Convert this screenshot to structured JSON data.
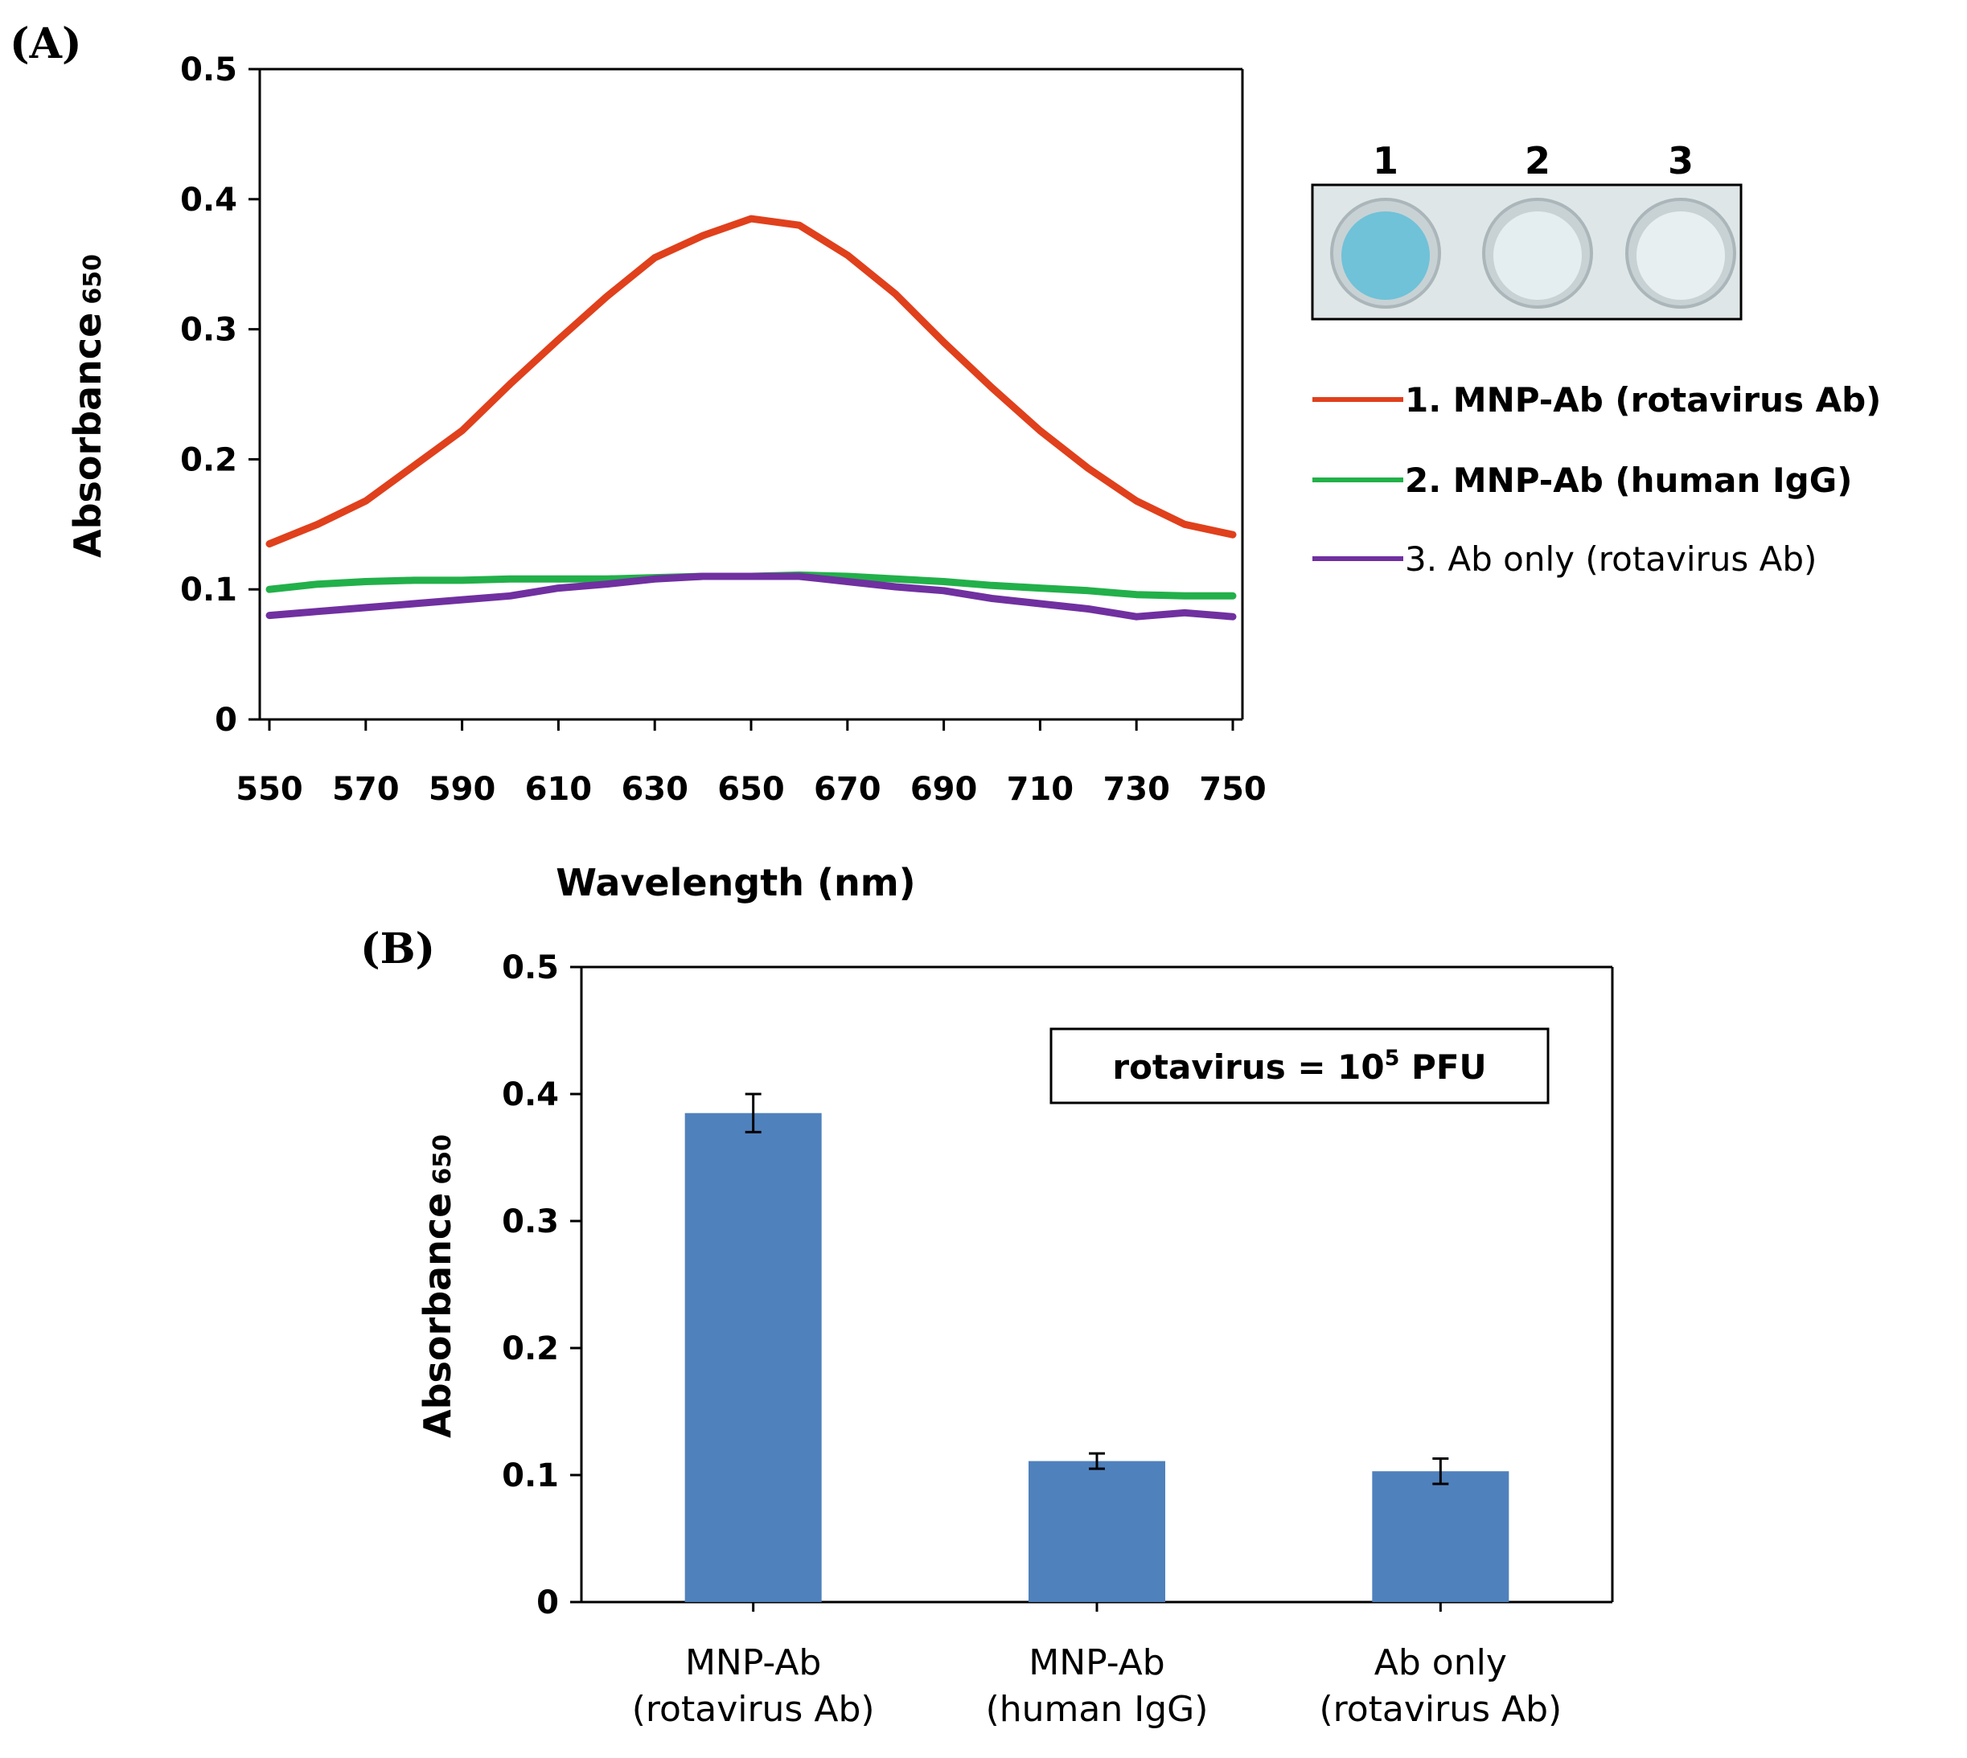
{
  "chart_data": [
    {
      "type": "line",
      "panel_label": "(A)",
      "xlabel": "Wavelength (nm)",
      "ylabel": "Absorbance",
      "ylabel_sub": "650",
      "xlim": [
        550,
        750
      ],
      "ylim": [
        0,
        0.5
      ],
      "xticks": [
        "550",
        "570",
        "590",
        "610",
        "630",
        "650",
        "670",
        "690",
        "710",
        "730",
        "750"
      ],
      "yticks": [
        "0",
        "0.1",
        "0.2",
        "0.3",
        "0.4",
        "0.5"
      ],
      "grid": false,
      "legend_position": "right",
      "x": [
        550,
        560,
        570,
        580,
        590,
        600,
        610,
        620,
        630,
        640,
        650,
        660,
        670,
        680,
        690,
        700,
        710,
        720,
        730,
        740,
        750
      ],
      "series": [
        {
          "name": "1. MNP-Ab (rotavirus Ab)",
          "color": "#e0401c",
          "legend_bold": true,
          "values": [
            0.135,
            0.15,
            0.168,
            0.195,
            0.222,
            0.258,
            0.292,
            0.325,
            0.355,
            0.372,
            0.385,
            0.38,
            0.357,
            0.327,
            0.29,
            0.255,
            0.222,
            0.193,
            0.168,
            0.15,
            0.142
          ]
        },
        {
          "name": "2. MNP-Ab (human IgG)",
          "color": "#22b04a",
          "legend_bold": true,
          "values": [
            0.1,
            0.104,
            0.106,
            0.107,
            0.107,
            0.108,
            0.108,
            0.108,
            0.109,
            0.11,
            0.11,
            0.111,
            0.11,
            0.108,
            0.106,
            0.103,
            0.101,
            0.099,
            0.096,
            0.095,
            0.095
          ]
        },
        {
          "name": "3. Ab only (rotavirus Ab)",
          "color": "#7030a0",
          "legend_bold": false,
          "values": [
            0.08,
            0.083,
            0.086,
            0.089,
            0.092,
            0.095,
            0.101,
            0.104,
            0.108,
            0.11,
            0.11,
            0.11,
            0.106,
            0.102,
            0.099,
            0.093,
            0.089,
            0.085,
            0.079,
            0.082,
            0.079
          ]
        }
      ],
      "inset": {
        "wells": [
          "1",
          "2",
          "3"
        ],
        "well_colors": [
          "#6fc2d8",
          "#e4eef0",
          "#e8eff1"
        ]
      }
    },
    {
      "type": "bar",
      "panel_label": "(B)",
      "ylabel": "Absorbance",
      "ylabel_sub": "650",
      "ylim": [
        0,
        0.5
      ],
      "yticks": [
        "0",
        "0.1",
        "0.2",
        "0.3",
        "0.4",
        "0.5"
      ],
      "grid": false,
      "categories": [
        [
          "MNP-Ab",
          "(rotavirus Ab)"
        ],
        [
          "MNP-Ab",
          "(human IgG)"
        ],
        [
          "Ab only",
          "(rotavirus Ab)"
        ]
      ],
      "values": [
        0.385,
        0.111,
        0.103
      ],
      "errors": [
        0.015,
        0.006,
        0.01
      ],
      "bar_color": "#4f81bd",
      "annotation": {
        "prefix": "rotavirus = 10",
        "superscript": "5",
        "suffix": " PFU"
      }
    }
  ]
}
